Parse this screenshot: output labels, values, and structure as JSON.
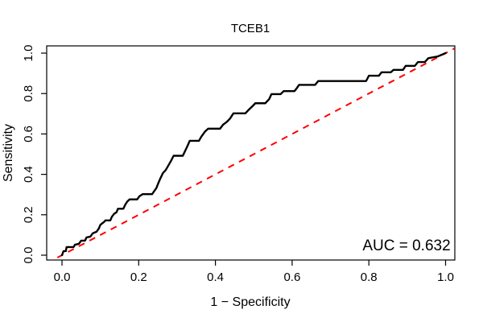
{
  "chart_data": {
    "type": "line",
    "subtype": "roc-curve",
    "title": "TCEB1",
    "xlabel": "1 − Specificity",
    "ylabel": "Sensitivity",
    "annotation": "AUC = 0.632",
    "auc": 0.632,
    "xlim": [
      0,
      1
    ],
    "ylim": [
      0,
      1
    ],
    "x_ticks": [
      "0.0",
      "0.2",
      "0.4",
      "0.6",
      "0.8",
      "1.0"
    ],
    "y_ticks": [
      "0.0",
      "0.2",
      "0.4",
      "0.6",
      "0.8",
      "1.0"
    ],
    "grid": false,
    "legend": "none",
    "colors": {
      "curve": "#000000",
      "reference": "#ff0000",
      "frame": "#000000"
    },
    "series": [
      {
        "name": "ROC curve",
        "style": "solid-step",
        "color": "#000000",
        "points": [
          [
            0.0,
            0.0
          ],
          [
            0.004,
            0.02
          ],
          [
            0.01,
            0.02
          ],
          [
            0.012,
            0.04
          ],
          [
            0.03,
            0.04
          ],
          [
            0.034,
            0.052
          ],
          [
            0.044,
            0.056
          ],
          [
            0.05,
            0.072
          ],
          [
            0.06,
            0.072
          ],
          [
            0.064,
            0.088
          ],
          [
            0.074,
            0.092
          ],
          [
            0.08,
            0.108
          ],
          [
            0.09,
            0.116
          ],
          [
            0.096,
            0.132
          ],
          [
            0.1,
            0.15
          ],
          [
            0.11,
            0.165
          ],
          [
            0.113,
            0.172
          ],
          [
            0.126,
            0.172
          ],
          [
            0.13,
            0.19
          ],
          [
            0.136,
            0.205
          ],
          [
            0.142,
            0.212
          ],
          [
            0.146,
            0.23
          ],
          [
            0.16,
            0.23
          ],
          [
            0.165,
            0.25
          ],
          [
            0.17,
            0.265
          ],
          [
            0.176,
            0.276
          ],
          [
            0.196,
            0.276
          ],
          [
            0.202,
            0.292
          ],
          [
            0.21,
            0.302
          ],
          [
            0.235,
            0.302
          ],
          [
            0.24,
            0.316
          ],
          [
            0.246,
            0.332
          ],
          [
            0.251,
            0.356
          ],
          [
            0.256,
            0.378
          ],
          [
            0.263,
            0.406
          ],
          [
            0.27,
            0.42
          ],
          [
            0.278,
            0.446
          ],
          [
            0.284,
            0.466
          ],
          [
            0.291,
            0.492
          ],
          [
            0.315,
            0.492
          ],
          [
            0.321,
            0.516
          ],
          [
            0.327,
            0.54
          ],
          [
            0.333,
            0.566
          ],
          [
            0.357,
            0.566
          ],
          [
            0.363,
            0.586
          ],
          [
            0.373,
            0.612
          ],
          [
            0.381,
            0.626
          ],
          [
            0.412,
            0.626
          ],
          [
            0.42,
            0.646
          ],
          [
            0.43,
            0.66
          ],
          [
            0.438,
            0.676
          ],
          [
            0.447,
            0.702
          ],
          [
            0.478,
            0.702
          ],
          [
            0.486,
            0.718
          ],
          [
            0.497,
            0.738
          ],
          [
            0.504,
            0.752
          ],
          [
            0.53,
            0.752
          ],
          [
            0.54,
            0.772
          ],
          [
            0.546,
            0.797
          ],
          [
            0.57,
            0.797
          ],
          [
            0.578,
            0.812
          ],
          [
            0.606,
            0.812
          ],
          [
            0.612,
            0.826
          ],
          [
            0.618,
            0.843
          ],
          [
            0.66,
            0.843
          ],
          [
            0.668,
            0.862
          ],
          [
            0.793,
            0.862
          ],
          [
            0.8,
            0.888
          ],
          [
            0.826,
            0.888
          ],
          [
            0.833,
            0.905
          ],
          [
            0.857,
            0.905
          ],
          [
            0.864,
            0.917
          ],
          [
            0.889,
            0.917
          ],
          [
            0.896,
            0.937
          ],
          [
            0.92,
            0.937
          ],
          [
            0.928,
            0.956
          ],
          [
            0.946,
            0.956
          ],
          [
            0.955,
            0.975
          ],
          [
            0.98,
            0.984
          ],
          [
            0.99,
            0.992
          ],
          [
            1.0,
            1.0
          ]
        ]
      },
      {
        "name": "Chance reference line",
        "style": "dashed",
        "color": "#ff0000",
        "points": [
          [
            0.0,
            0.0
          ],
          [
            1.0,
            1.0
          ]
        ]
      }
    ]
  }
}
